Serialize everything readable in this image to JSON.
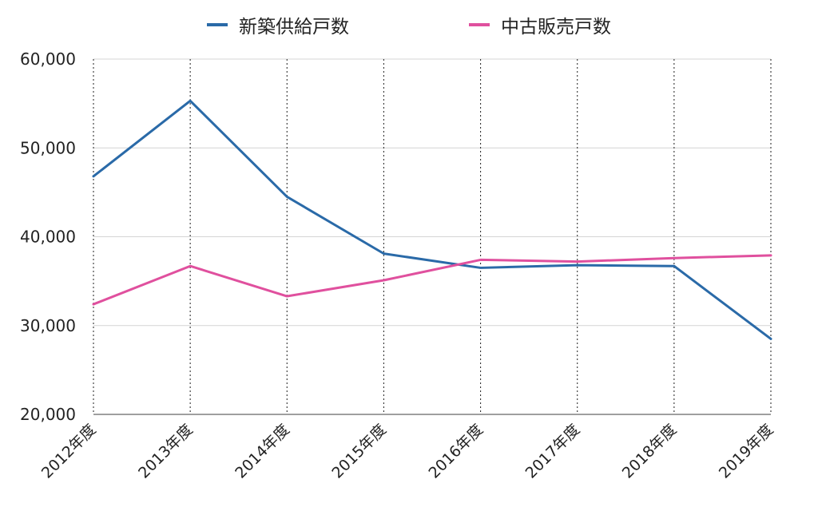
{
  "chart_data": {
    "type": "line",
    "title": "",
    "xlabel": "",
    "ylabel": "",
    "categories": [
      "2012年度",
      "2013年度",
      "2014年度",
      "2015年度",
      "2016年度",
      "2017年度",
      "2018年度",
      "2019年度"
    ],
    "ylim": [
      20000,
      60000
    ],
    "yticks": [
      20000,
      30000,
      40000,
      50000,
      60000
    ],
    "ytick_labels": [
      "20,000",
      "30,000",
      "40,000",
      "50,000",
      "60,000"
    ],
    "grid": "horizontal solid, vertical dotted",
    "legend_position": "top-center",
    "series": [
      {
        "name": "新築供給戸数",
        "color": "#2a6aa8",
        "values": [
          46800,
          55300,
          44500,
          38100,
          36500,
          36800,
          36700,
          28500
        ]
      },
      {
        "name": "中古販売戸数",
        "color": "#e0509e",
        "values": [
          32400,
          36700,
          33300,
          35100,
          37400,
          37200,
          37600,
          37900
        ]
      }
    ]
  }
}
